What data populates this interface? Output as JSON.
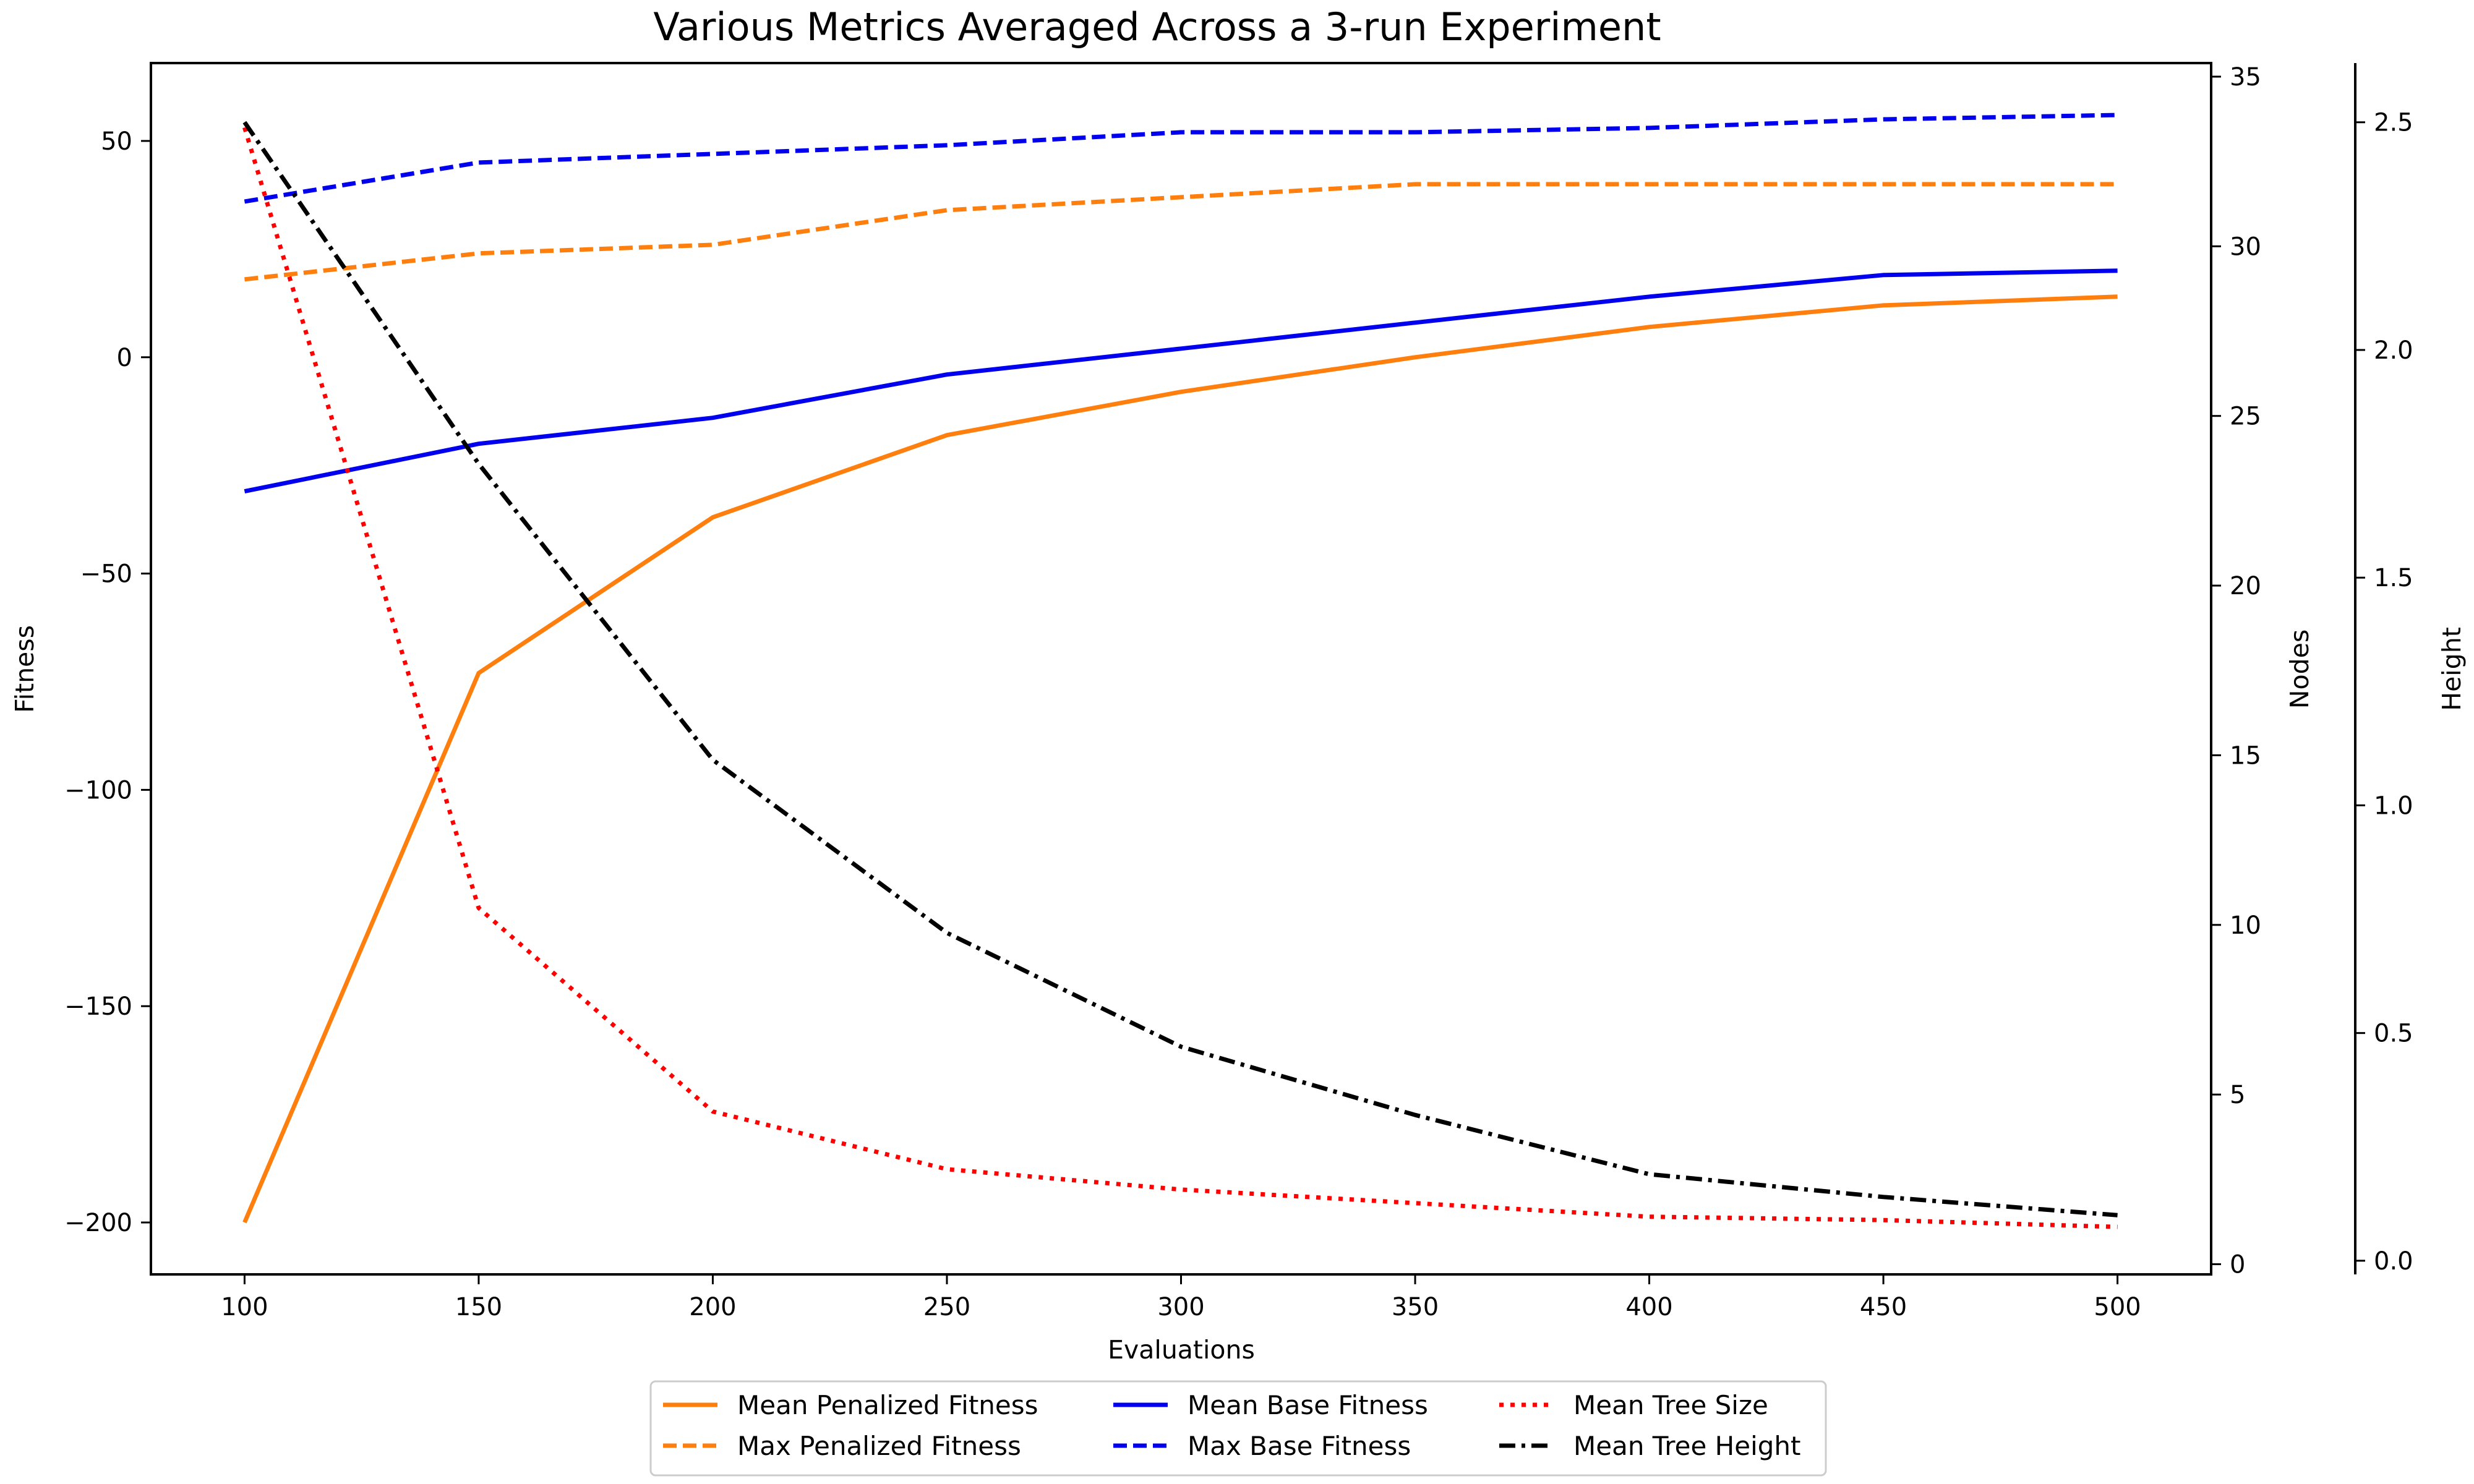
{
  "chart_data": {
    "type": "line",
    "title": "Various Metrics Averaged Across a 3-run Experiment",
    "xlabel": "Evaluations",
    "ylabel": "Fitness",
    "y2label": "Nodes",
    "y3label": "Height",
    "x": [
      100,
      150,
      200,
      250,
      300,
      350,
      400,
      450,
      500
    ],
    "xlim": [
      80,
      520
    ],
    "xticks": [
      100,
      150,
      200,
      250,
      300,
      350,
      400,
      450,
      500
    ],
    "ylim": [
      -212,
      68
    ],
    "yticks": [
      50,
      0,
      -50,
      -100,
      -150,
      -200
    ],
    "ytick_labels": [
      "50",
      "0",
      "−50",
      "−100",
      "−150",
      "−200"
    ],
    "y2lim": [
      -0.3,
      35.4
    ],
    "y2ticks": [
      0,
      5,
      10,
      15,
      20,
      25,
      30,
      35
    ],
    "y3lim": [
      -0.03,
      2.63
    ],
    "y3ticks": [
      0.0,
      0.5,
      1.0,
      1.5,
      2.0,
      2.5
    ],
    "y3tick_labels": [
      "0.0",
      "0.5",
      "1.0",
      "1.5",
      "2.0",
      "2.5"
    ],
    "grid": false,
    "legend_position": "bottom-center",
    "series": [
      {
        "name": "Mean Penalized Fitness",
        "axis": "fitness",
        "color": "#ff7f0e",
        "style": "solid",
        "values": [
          -200,
          -73,
          -37,
          -18,
          -8,
          0,
          7,
          12,
          14
        ]
      },
      {
        "name": "Max Penalized Fitness",
        "axis": "fitness",
        "color": "#ff7f0e",
        "style": "dashed",
        "values": [
          18,
          24,
          26,
          34,
          37,
          40,
          40,
          40,
          40
        ]
      },
      {
        "name": "Mean Base Fitness",
        "axis": "fitness",
        "color": "#0000ee",
        "style": "solid",
        "values": [
          -31,
          -20,
          -14,
          -4,
          2,
          8,
          14,
          19,
          20
        ]
      },
      {
        "name": "Max Base Fitness",
        "axis": "fitness",
        "color": "#0000ee",
        "style": "dashed",
        "values": [
          36,
          45,
          47,
          49,
          52,
          52,
          53,
          55,
          56
        ]
      },
      {
        "name": "Mean Tree Size",
        "axis": "nodes",
        "color": "#ff0000",
        "style": "dotted",
        "values": [
          33.5,
          10.5,
          4.5,
          2.8,
          2.2,
          1.8,
          1.4,
          1.3,
          1.1
        ]
      },
      {
        "name": "Mean Tree Height",
        "axis": "height",
        "color": "#000000",
        "style": "dashdot",
        "values": [
          2.5,
          1.75,
          1.1,
          0.72,
          0.47,
          0.32,
          0.19,
          0.14,
          0.1
        ]
      }
    ]
  }
}
